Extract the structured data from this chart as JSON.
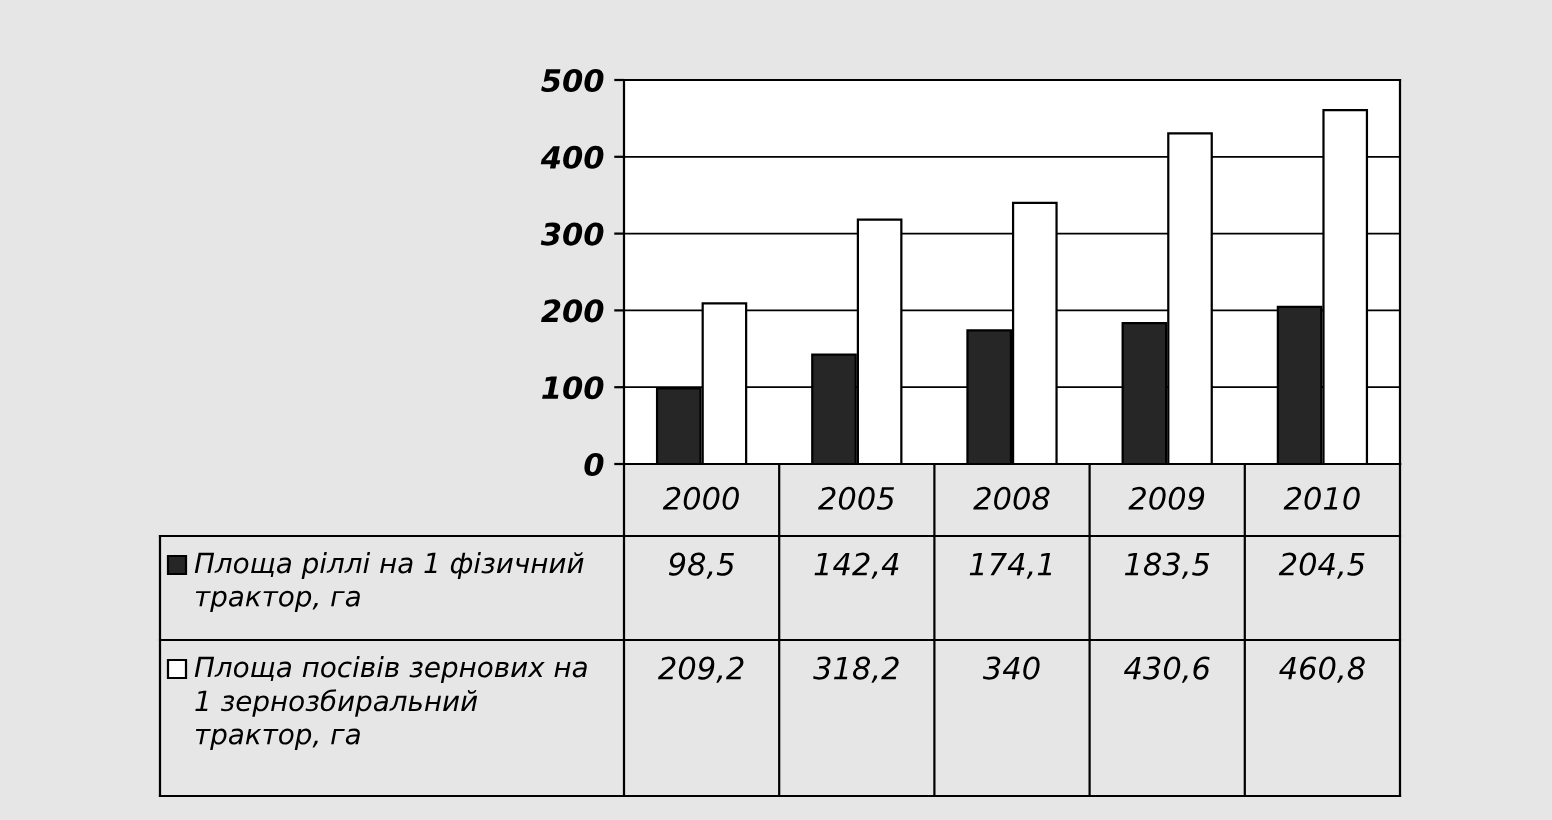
{
  "chart_data": {
    "type": "bar",
    "categories": [
      "2000",
      "2005",
      "2008",
      "2009",
      "2010"
    ],
    "series": [
      {
        "name": "Площа ріллі на 1 фізичний трактор, га",
        "color": "#262626",
        "values": [
          98.5,
          142.4,
          174.1,
          183.5,
          204.5
        ],
        "value_labels": [
          "98,5",
          "142,4",
          "174,1",
          "183,5",
          "204,5"
        ]
      },
      {
        "name": "Площа посівів зернових на 1 зернозбиральний трактор, га",
        "color": "#ffffff",
        "values": [
          209.2,
          318.2,
          340,
          430.6,
          460.8
        ],
        "value_labels": [
          "209,2",
          "318,2",
          "340",
          "430,6",
          "460,8"
        ]
      }
    ],
    "ylim": [
      0,
      500
    ],
    "yticks": [
      0,
      100,
      200,
      300,
      400,
      500
    ],
    "grid": "y",
    "legend": "bottom left"
  }
}
